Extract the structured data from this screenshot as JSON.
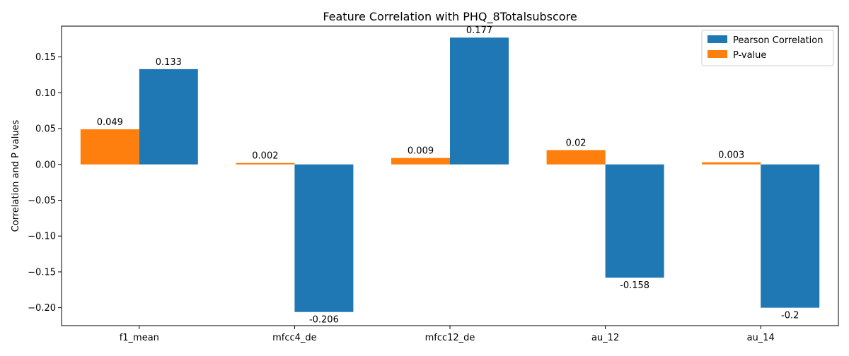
{
  "chart_data": {
    "type": "bar",
    "title": "Feature Correlation with PHQ_8Totalsubscore",
    "xlabel": "",
    "ylabel": "Correlation and P values",
    "categories": [
      "f1_mean",
      "mfcc4_de",
      "mfcc12_de",
      "au_12",
      "au_14"
    ],
    "series": [
      {
        "name": "P-value",
        "color": "#ff7f0e",
        "values": [
          0.049,
          0.002,
          0.009,
          0.02,
          0.003
        ],
        "labels": [
          "0.049",
          "0.002",
          "0.009",
          "0.02",
          "0.003"
        ]
      },
      {
        "name": "Pearson Correlation",
        "color": "#1f77b4",
        "values": [
          0.133,
          -0.206,
          0.177,
          -0.158,
          -0.2
        ],
        "labels": [
          "0.133",
          "-0.206",
          "0.177",
          "-0.158",
          "-0.2"
        ]
      }
    ],
    "ylim": [
      -0.225,
      0.193
    ],
    "yticks": [
      -0.2,
      -0.15,
      -0.1,
      -0.05,
      0.0,
      0.05,
      0.1,
      0.15
    ],
    "ytick_labels": [
      "−0.20",
      "−0.15",
      "−0.10",
      "−0.05",
      "0.00",
      "0.05",
      "0.10",
      "0.15"
    ],
    "legend": {
      "position": "top-right",
      "entries": [
        "Pearson Correlation",
        "P-value"
      ]
    },
    "grid": false
  }
}
